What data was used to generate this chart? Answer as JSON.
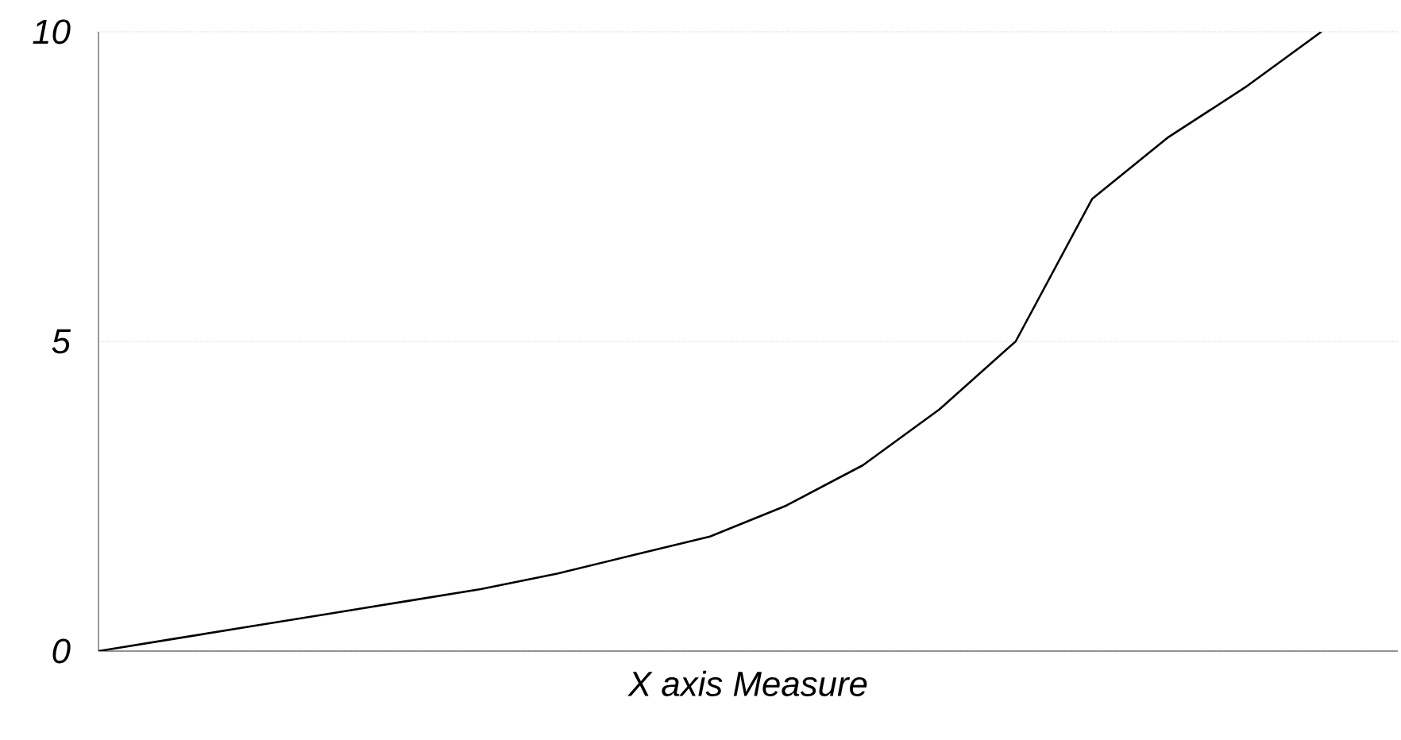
{
  "chart_data": {
    "type": "line",
    "xlabel": "X axis Measure",
    "categories": [
      null,
      null,
      null,
      null,
      null,
      null,
      null,
      null,
      null,
      null,
      null,
      null,
      null,
      null,
      null,
      null,
      null,
      null
    ],
    "series": [
      {
        "color": "#000000",
        "values": [
          0,
          0.2,
          0.4,
          0.6,
          0.8,
          1.0,
          1.25,
          1.55,
          1.85,
          2.35,
          3.0,
          3.9,
          5.0,
          7.3,
          8.3,
          9.1,
          10,
          null
        ]
      }
    ],
    "ylim": [
      0,
      10
    ],
    "yticks": [
      0,
      5,
      10
    ],
    "grid": "y",
    "tick_labels": "y",
    "marker": "none",
    "line_style": "solid"
  }
}
